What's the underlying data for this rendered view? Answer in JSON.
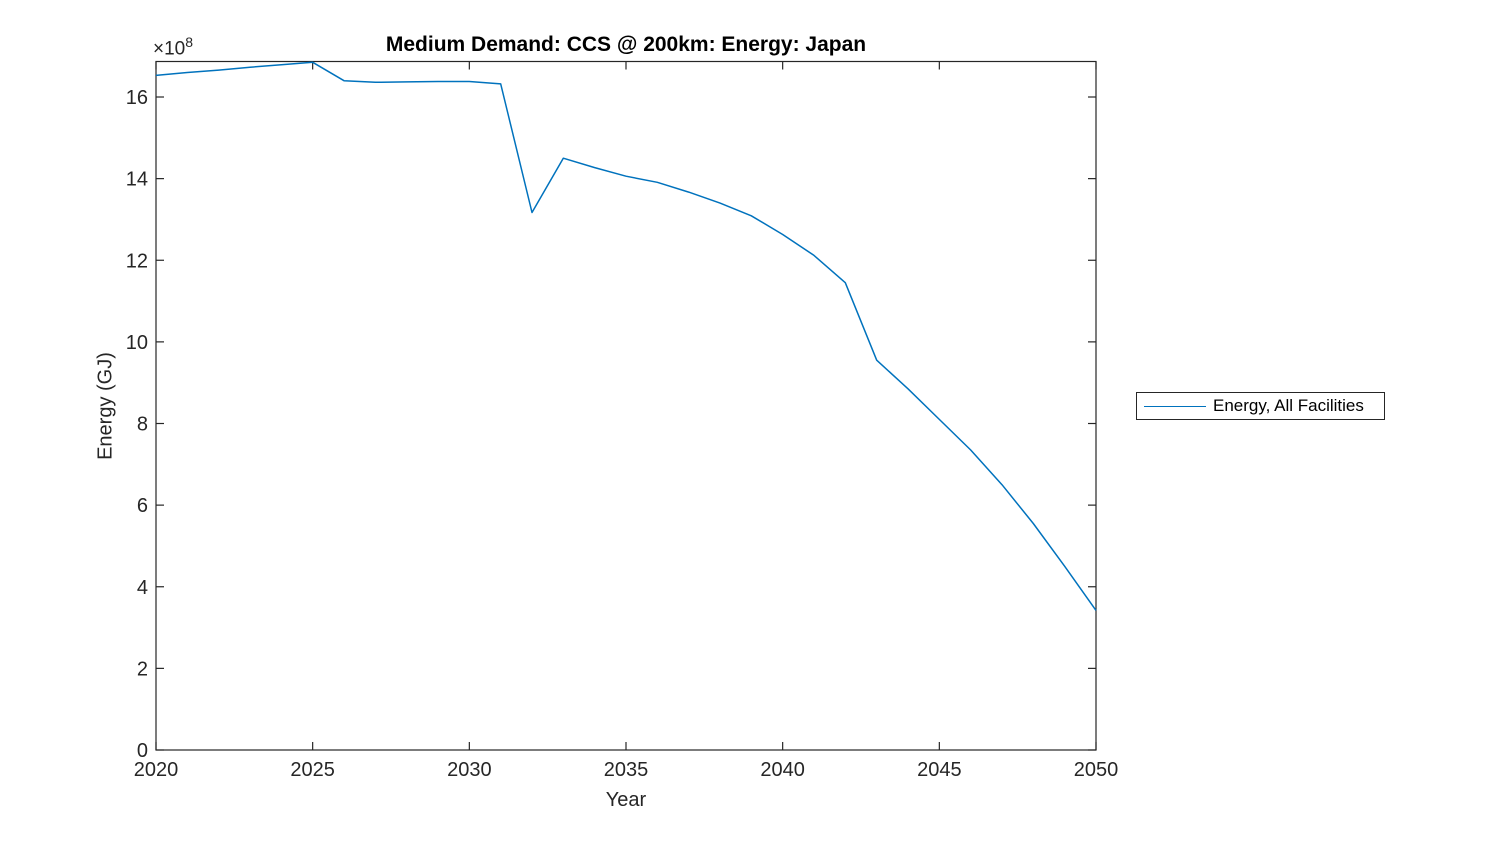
{
  "figure": {
    "background": "#ffffff"
  },
  "axes": {
    "multiplier_base": "×10",
    "multiplier_exp": "8"
  },
  "colors": {
    "line": "#0072BD",
    "axis": "#262626",
    "tick_text": "#262626",
    "title_text": "#000000"
  },
  "legend": {
    "label": "Energy, All Facilities",
    "position": "right-outside"
  },
  "chart_data": {
    "type": "line",
    "title": "Medium Demand: CCS @ 200km: Energy: Japan",
    "xlabel": "Year",
    "ylabel": "Energy (GJ)",
    "y_unit_multiplier": "1e8",
    "xlim": [
      2020,
      2050
    ],
    "ylim": [
      0,
      16.87
    ],
    "xticks": [
      "2020",
      "2025",
      "2030",
      "2035",
      "2040",
      "2045",
      "2050"
    ],
    "yticks": [
      "0",
      "2",
      "4",
      "6",
      "8",
      "10",
      "12",
      "14",
      "16"
    ],
    "grid": false,
    "box": true,
    "tick_direction": "in",
    "legend_position": "right-outside",
    "series": [
      {
        "name": "Energy, All Facilities",
        "color": "#0072BD",
        "x": [
          2020,
          2021,
          2022,
          2023,
          2024,
          2025,
          2026,
          2027,
          2028,
          2029,
          2030,
          2031,
          2032,
          2033,
          2034,
          2035,
          2036,
          2037,
          2038,
          2039,
          2040,
          2041,
          2042,
          2043,
          2044,
          2045,
          2046,
          2047,
          2048,
          2049,
          2050
        ],
        "y": [
          16.53,
          16.6,
          16.66,
          16.73,
          16.79,
          16.85,
          16.4,
          16.36,
          16.37,
          16.38,
          16.38,
          16.32,
          13.17,
          14.5,
          14.27,
          14.06,
          13.91,
          13.67,
          13.4,
          13.09,
          12.63,
          12.12,
          11.45,
          9.55,
          8.85,
          8.1,
          7.35,
          6.5,
          5.55,
          4.5,
          3.42
        ]
      }
    ]
  }
}
